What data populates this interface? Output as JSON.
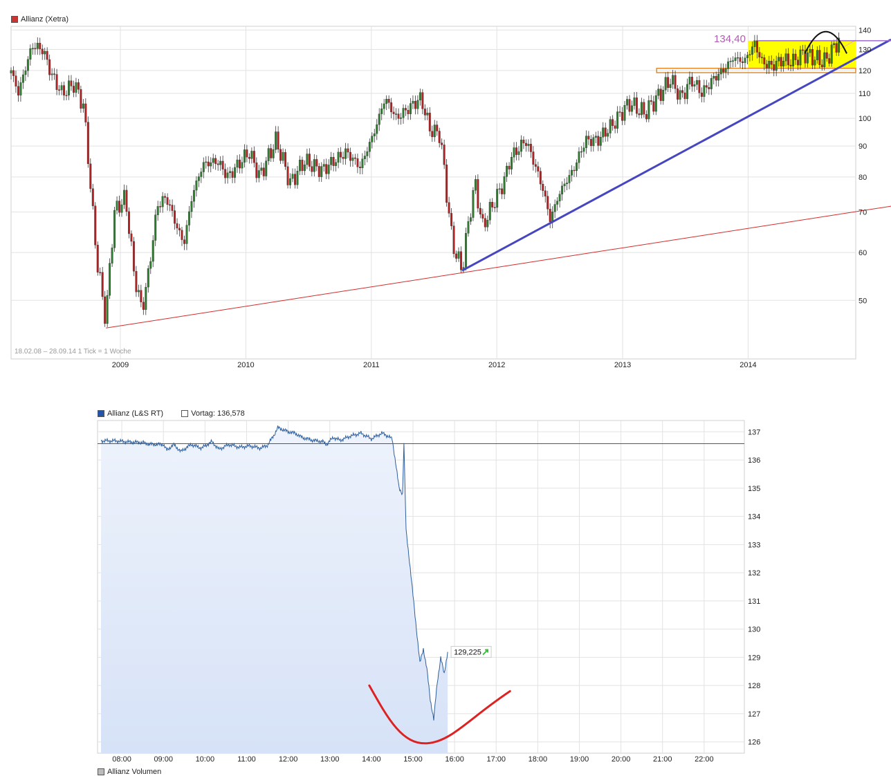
{
  "colors": {
    "candle_up": "#2f7d2f",
    "candle_down": "#b22222",
    "wick": "#333333",
    "grid": "#e2e2e2",
    "support_line": "#d42a2a",
    "trend_line": "#4646c0",
    "range_box": "#ffff00",
    "range_box_border": "#e08b2a",
    "wedge": "#f4a9c0",
    "resistance_label": "#b05cb0",
    "intraday_line": "#2d5f9e",
    "intraday_fill": "#d6e2f7",
    "vortag_line": "#555555",
    "bottom_curve": "#dd2222",
    "arrow_up": "#2fbf2f"
  },
  "chart_data": [
    {
      "type": "candlestick",
      "legend": "Allianz (Xetra)",
      "legend_color": "#cc3333",
      "info": "18.02.08 – 28.09.14   1 Tick = 1 Woche",
      "x_ticks": [
        "2009",
        "2010",
        "2011",
        "2012",
        "2013",
        "2014"
      ],
      "y_ticks": [
        50,
        60,
        70,
        80,
        90,
        100,
        110,
        120,
        130,
        140
      ],
      "ylim": [
        40,
        142
      ],
      "y_scale": "log",
      "anchors": [
        [
          "2008-02-18",
          120
        ],
        [
          "2008-03-10",
          110
        ],
        [
          "2008-04-20",
          132
        ],
        [
          "2008-05-20",
          130
        ],
        [
          "2008-06-15",
          118
        ],
        [
          "2008-07-15",
          110
        ],
        [
          "2008-08-20",
          114
        ],
        [
          "2008-09-15",
          105
        ],
        [
          "2008-10-10",
          72
        ],
        [
          "2008-10-25",
          58
        ],
        [
          "2008-11-20",
          46
        ],
        [
          "2008-12-15",
          70
        ],
        [
          "2009-01-15",
          74
        ],
        [
          "2009-02-10",
          55
        ],
        [
          "2009-03-05",
          48
        ],
        [
          "2009-03-25",
          56
        ],
        [
          "2009-04-20",
          72
        ],
        [
          "2009-05-15",
          74
        ],
        [
          "2009-06-15",
          66
        ],
        [
          "2009-07-05",
          62
        ],
        [
          "2009-07-30",
          75
        ],
        [
          "2009-08-30",
          84
        ],
        [
          "2009-10-10",
          85
        ],
        [
          "2009-11-10",
          80
        ],
        [
          "2010-01-10",
          88
        ],
        [
          "2010-02-10",
          80
        ],
        [
          "2010-03-30",
          92
        ],
        [
          "2010-05-10",
          78
        ],
        [
          "2010-06-20",
          85
        ],
        [
          "2010-08-10",
          82
        ],
        [
          "2010-10-20",
          88
        ],
        [
          "2010-11-30",
          83
        ],
        [
          "2011-01-10",
          95
        ],
        [
          "2011-02-10",
          108
        ],
        [
          "2011-03-15",
          100
        ],
        [
          "2011-04-20",
          104
        ],
        [
          "2011-05-25",
          108
        ],
        [
          "2011-06-20",
          96
        ],
        [
          "2011-07-20",
          94
        ],
        [
          "2011-08-08",
          75
        ],
        [
          "2011-08-25",
          62
        ],
        [
          "2011-09-22",
          56
        ],
        [
          "2011-10-15",
          70
        ],
        [
          "2011-10-30",
          78
        ],
        [
          "2011-11-20",
          66
        ],
        [
          "2011-12-20",
          72
        ],
        [
          "2012-01-20",
          78
        ],
        [
          "2012-02-10",
          86
        ],
        [
          "2012-03-25",
          92
        ],
        [
          "2012-04-20",
          84
        ],
        [
          "2012-05-15",
          76
        ],
        [
          "2012-06-04",
          68
        ],
        [
          "2012-07-05",
          76
        ],
        [
          "2012-08-10",
          82
        ],
        [
          "2012-09-15",
          92
        ],
        [
          "2012-10-20",
          92
        ],
        [
          "2012-12-05",
          98
        ],
        [
          "2013-01-20",
          106
        ],
        [
          "2013-03-05",
          102
        ],
        [
          "2013-04-10",
          108
        ],
        [
          "2013-05-20",
          116
        ],
        [
          "2013-06-20",
          108
        ],
        [
          "2013-07-20",
          116
        ],
        [
          "2013-08-20",
          110
        ],
        [
          "2013-09-20",
          116
        ],
        [
          "2013-10-20",
          120
        ],
        [
          "2013-11-20",
          126
        ],
        [
          "2013-12-20",
          124
        ],
        [
          "2014-01-20",
          133
        ],
        [
          "2014-02-10",
          124
        ],
        [
          "2014-03-10",
          122
        ],
        [
          "2014-04-10",
          125
        ],
        [
          "2014-05-10",
          124
        ],
        [
          "2014-06-10",
          128
        ],
        [
          "2014-07-10",
          126
        ],
        [
          "2014-08-10",
          124
        ],
        [
          "2014-09-05",
          130
        ],
        [
          "2014-09-20",
          135
        ],
        [
          "2014-09-28",
          133
        ]
      ],
      "support_line": {
        "from": [
          "2008-11-20",
          45
        ],
        "to": [
          "2014-11-10",
          71
        ]
      },
      "trend_line": {
        "from": [
          "2011-09-22",
          56
        ],
        "to": [
          "2014-11-10",
          135
        ]
      },
      "trend_touch": [
        "2012-06-04",
        68
      ],
      "range_box": {
        "x": [
          "2013-12-31",
          "2014-11-10"
        ],
        "y": [
          121,
          134.4
        ]
      },
      "support_band": {
        "x": [
          "2013-04-10",
          "2014-11-10"
        ],
        "y": [
          119,
          121
        ]
      },
      "resistance": {
        "value": 134.4,
        "label": "134,40",
        "x": [
          "2013-12-01",
          "2014-11-10"
        ]
      },
      "top_arc": {
        "x": [
          "2014-06-15",
          "2014-10-15"
        ],
        "peak": 142
      }
    },
    {
      "type": "line",
      "legend": "Allianz (L&S RT)",
      "legend_color": "#2255aa",
      "reference_legend": "Vortag: 136,578",
      "reference_value": 136.578,
      "last_label": "129,225",
      "x_ticks": [
        "08:00",
        "09:00",
        "10:00",
        "11:00",
        "12:00",
        "13:00",
        "14:00",
        "15:00",
        "16:00",
        "17:00",
        "18:00",
        "19:00",
        "20:00",
        "21:00",
        "22:00"
      ],
      "y_ticks": [
        126,
        127,
        128,
        129,
        130,
        131,
        132,
        133,
        134,
        135,
        136,
        137
      ],
      "xlim": [
        "07:25",
        "22:58"
      ],
      "ylim": [
        125.6,
        137.4
      ],
      "anchors": [
        [
          "07:30",
          136.68
        ],
        [
          "07:50",
          136.68
        ],
        [
          "08:10",
          136.64
        ],
        [
          "08:30",
          136.62
        ],
        [
          "08:40",
          136.56
        ],
        [
          "09:00",
          136.55
        ],
        [
          "09:05",
          136.35
        ],
        [
          "09:15",
          136.55
        ],
        [
          "09:25",
          136.3
        ],
        [
          "09:40",
          136.55
        ],
        [
          "09:55",
          136.42
        ],
        [
          "10:10",
          136.65
        ],
        [
          "10:20",
          136.38
        ],
        [
          "10:35",
          136.55
        ],
        [
          "10:50",
          136.45
        ],
        [
          "11:05",
          136.5
        ],
        [
          "11:20",
          136.42
        ],
        [
          "11:30",
          136.52
        ],
        [
          "11:40",
          136.9
        ],
        [
          "11:45",
          137.15
        ],
        [
          "12:00",
          137.0
        ],
        [
          "12:10",
          136.95
        ],
        [
          "12:20",
          136.8
        ],
        [
          "12:35",
          136.7
        ],
        [
          "12:50",
          136.65
        ],
        [
          "12:55",
          136.55
        ],
        [
          "13:05",
          136.8
        ],
        [
          "13:15",
          136.7
        ],
        [
          "13:30",
          136.85
        ],
        [
          "13:45",
          136.95
        ],
        [
          "14:00",
          136.75
        ],
        [
          "14:15",
          136.95
        ],
        [
          "14:20",
          136.9
        ],
        [
          "14:30",
          136.75
        ],
        [
          "14:35",
          135.9
        ],
        [
          "14:40",
          135.0
        ],
        [
          "14:45",
          134.8
        ],
        [
          "14:47",
          136.6
        ],
        [
          "14:50",
          133.5
        ],
        [
          "14:55",
          132.4
        ],
        [
          "15:00",
          131.2
        ],
        [
          "15:05",
          130.0
        ],
        [
          "15:10",
          128.8
        ],
        [
          "15:15",
          129.3
        ],
        [
          "15:20",
          128.6
        ],
        [
          "15:25",
          127.5
        ],
        [
          "15:30",
          126.8
        ],
        [
          "15:35",
          128.1
        ],
        [
          "15:40",
          129.0
        ],
        [
          "15:45",
          128.4
        ],
        [
          "15:50",
          129.2
        ]
      ],
      "bottom_curve": {
        "start": [
          "13:57",
          128.0
        ],
        "min": [
          "15:20",
          125.95
        ],
        "end": [
          "17:20",
          127.8
        ]
      }
    }
  ],
  "volume_legend": "Allianz Volumen"
}
